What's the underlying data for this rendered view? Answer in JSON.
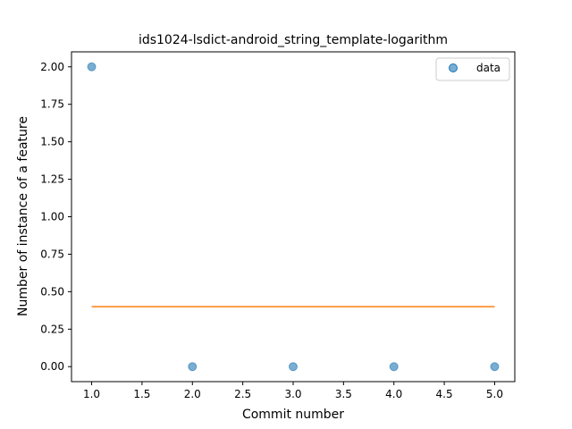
{
  "chart_data": {
    "type": "scatter",
    "title": "ids1024-lsdict-android_string_template-logarithm",
    "xlabel": "Commit number",
    "ylabel": "Number of instance of a feature",
    "xlim": [
      0.8,
      5.2
    ],
    "ylim": [
      -0.1,
      2.1
    ],
    "x_ticks": [
      1.0,
      1.5,
      2.0,
      2.5,
      3.0,
      3.5,
      4.0,
      4.5,
      5.0
    ],
    "x_tick_labels": [
      "1.0",
      "1.5",
      "2.0",
      "2.5",
      "3.0",
      "3.5",
      "4.0",
      "4.5",
      "5.0"
    ],
    "y_ticks": [
      0.0,
      0.25,
      0.5,
      0.75,
      1.0,
      1.25,
      1.5,
      1.75,
      2.0
    ],
    "y_tick_labels": [
      "0.00",
      "0.25",
      "0.50",
      "0.75",
      "1.00",
      "1.25",
      "1.50",
      "1.75",
      "2.00"
    ],
    "grid": false,
    "legend_position": "top-right",
    "series": [
      {
        "name": "data",
        "kind": "scatter",
        "color": "#1f77b4",
        "x": [
          1,
          2,
          3,
          4,
          5
        ],
        "y": [
          2,
          0,
          0,
          0,
          0
        ]
      },
      {
        "kind": "line",
        "color": "#ff7f0e",
        "x": [
          1,
          5
        ],
        "y": [
          0.4,
          0.4
        ]
      }
    ]
  }
}
